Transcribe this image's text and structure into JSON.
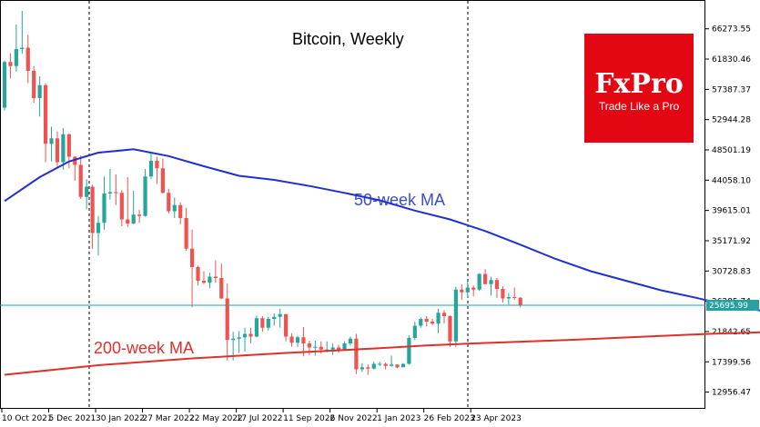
{
  "chart_data": {
    "type": "candlestick",
    "title": "Bitcoin, Weekly",
    "y_ticks": [
      "66273.55",
      "61830.46",
      "57387.37",
      "52944.28",
      "48501.19",
      "44058.10",
      "39615.01",
      "35171.92",
      "30728.83",
      "26285.74",
      "21842.65",
      "17399.56",
      "12956.47"
    ],
    "x_ticks": [
      "10 Oct 2021",
      "5 Dec 2021",
      "30 Jan 2022",
      "27 Mar 2022",
      "22 May 2022",
      "17 Jul 2022",
      "11 Sep 2022",
      "6 Nov 2022",
      "1 Jan 2023",
      "26 Feb 2023",
      "23 Apr 2023"
    ],
    "ylim": [
      10500,
      70500
    ],
    "current_price": "25695.99",
    "current_price_value": 25695.99,
    "annotations": {
      "ma50_label": "50-week MA",
      "ma200_label": "200-week MA"
    },
    "candles": [
      [
        54700,
        61600,
        54300,
        61400
      ],
      [
        61400,
        62700,
        59000,
        60800
      ],
      [
        60800,
        66900,
        60000,
        63300
      ],
      [
        63300,
        68900,
        62600,
        63500
      ],
      [
        63500,
        65400,
        58300,
        60100
      ],
      [
        60100,
        60800,
        55400,
        56100
      ],
      [
        56100,
        59300,
        53400,
        58000
      ],
      [
        58000,
        58300,
        46700,
        49400
      ],
      [
        49400,
        51900,
        46800,
        50200
      ],
      [
        50200,
        51200,
        45900,
        46700
      ],
      [
        46700,
        51700,
        45600,
        50800
      ],
      [
        50800,
        50900,
        45800,
        47500
      ],
      [
        47500,
        47600,
        44000,
        46300
      ],
      [
        46300,
        47700,
        41300,
        41600
      ],
      [
        41600,
        44200,
        39800,
        43100
      ],
      [
        43100,
        43400,
        34000,
        36300
      ],
      [
        36300,
        38800,
        33000,
        37800
      ],
      [
        37800,
        44600,
        36800,
        42100
      ],
      [
        42100,
        45700,
        41200,
        42300
      ],
      [
        42300,
        44900,
        40400,
        42200
      ],
      [
        42200,
        42600,
        37300,
        38300
      ],
      [
        38300,
        44500,
        37200,
        37700
      ],
      [
        37700,
        42500,
        37600,
        39000
      ],
      [
        39000,
        39700,
        37800,
        38800
      ],
      [
        38800,
        45700,
        38700,
        44600
      ],
      [
        44600,
        48200,
        44200,
        46900
      ],
      [
        46900,
        47500,
        43500,
        45800
      ],
      [
        45800,
        47200,
        42100,
        42200
      ],
      [
        42200,
        42800,
        39200,
        39500
      ],
      [
        39500,
        41500,
        38500,
        40400
      ],
      [
        40400,
        40800,
        37600,
        38500
      ],
      [
        38500,
        40000,
        33700,
        34000
      ],
      [
        34000,
        36800,
        25400,
        31300
      ],
      [
        31300,
        31500,
        28600,
        29300
      ],
      [
        29300,
        30700,
        28800,
        29000
      ],
      [
        29000,
        30500,
        28200,
        29900
      ],
      [
        29900,
        32300,
        29000,
        29700
      ],
      [
        29700,
        31800,
        26600,
        26700
      ],
      [
        26700,
        28900,
        17600,
        20600
      ],
      [
        20600,
        21800,
        17600,
        20800
      ],
      [
        20800,
        21900,
        18700,
        21000
      ],
      [
        21000,
        22400,
        18900,
        21500
      ],
      [
        21500,
        22400,
        20100,
        21100
      ],
      [
        21100,
        24200,
        21000,
        23800
      ],
      [
        23800,
        24100,
        21800,
        22400
      ],
      [
        22400,
        24000,
        22000,
        23700
      ],
      [
        23700,
        24500,
        22700,
        24000
      ],
      [
        24000,
        25200,
        22400,
        24400
      ],
      [
        24400,
        24400,
        20400,
        21100
      ],
      [
        21100,
        21600,
        19600,
        20200
      ],
      [
        20200,
        21200,
        19600,
        21000
      ],
      [
        21000,
        22500,
        18200,
        20100
      ],
      [
        20100,
        20500,
        18400,
        19500
      ],
      [
        19500,
        20500,
        18300,
        19600
      ],
      [
        19600,
        20400,
        18600,
        19200
      ],
      [
        19200,
        20400,
        18800,
        19200
      ],
      [
        19200,
        20100,
        18400,
        19500
      ],
      [
        19500,
        19900,
        18700,
        19200
      ],
      [
        19200,
        20400,
        19200,
        20100
      ],
      [
        20100,
        21100,
        19800,
        20800
      ],
      [
        20800,
        21500,
        15600,
        16300
      ],
      [
        16300,
        17200,
        15900,
        16600
      ],
      [
        16600,
        17000,
        15500,
        16400
      ],
      [
        16400,
        17400,
        16300,
        17100
      ],
      [
        17100,
        17400,
        16800,
        17100
      ],
      [
        17100,
        17300,
        16300,
        16800
      ],
      [
        16800,
        18300,
        16700,
        17000
      ],
      [
        17000,
        17000,
        16500,
        16600
      ],
      [
        16600,
        17200,
        16600,
        17100
      ],
      [
        17100,
        21300,
        17000,
        20900
      ],
      [
        20900,
        23300,
        20600,
        22700
      ],
      [
        22700,
        23900,
        22400,
        23700
      ],
      [
        23700,
        24100,
        22600,
        23300
      ],
      [
        23300,
        23700,
        22800,
        23000
      ],
      [
        23000,
        25200,
        21600,
        24600
      ],
      [
        24600,
        25000,
        23000,
        24100
      ],
      [
        24100,
        24200,
        19600,
        20400
      ],
      [
        20400,
        28400,
        19600,
        28000
      ],
      [
        28000,
        28800,
        26500,
        27600
      ],
      [
        27600,
        29200,
        26800,
        28300
      ],
      [
        28300,
        28600,
        27000,
        28000
      ],
      [
        28000,
        30400,
        27800,
        30300
      ],
      [
        30300,
        31000,
        28800,
        28800
      ],
      [
        28800,
        29900,
        27100,
        29400
      ],
      [
        29400,
        29700,
        26800,
        28100
      ],
      [
        28100,
        28500,
        26100,
        26700
      ],
      [
        26700,
        27500,
        25800,
        26900
      ],
      [
        26900,
        28300,
        26500,
        26800
      ],
      [
        26800,
        26900,
        25400,
        25700
      ]
    ],
    "ma50": [
      [
        0,
        41000
      ],
      [
        6,
        44500
      ],
      [
        11,
        46800
      ],
      [
        16,
        48100
      ],
      [
        22,
        48600
      ],
      [
        28,
        47600
      ],
      [
        34,
        46100
      ],
      [
        40,
        44700
      ],
      [
        46,
        44100
      ],
      [
        52,
        43200
      ],
      [
        58,
        42200
      ],
      [
        64,
        41100
      ],
      [
        70,
        39600
      ],
      [
        76,
        38300
      ],
      [
        82,
        36600
      ],
      [
        88,
        34600
      ],
      [
        94,
        32500
      ],
      [
        100,
        30700
      ],
      [
        106,
        29300
      ],
      [
        112,
        27900
      ],
      [
        118,
        26800
      ],
      [
        124,
        25600
      ],
      [
        130,
        24800
      ],
      [
        136,
        24000
      ],
      [
        142,
        23400
      ],
      [
        148,
        22500
      ],
      [
        154,
        21200
      ],
      [
        160,
        20300
      ],
      [
        166,
        20100
      ],
      [
        172,
        20100
      ],
      [
        178,
        20200
      ]
    ],
    "ma200": [
      [
        0,
        15500
      ],
      [
        16,
        16900
      ],
      [
        32,
        17900
      ],
      [
        48,
        18700
      ],
      [
        64,
        19400
      ],
      [
        72,
        19800
      ],
      [
        80,
        20100
      ],
      [
        96,
        20600
      ],
      [
        112,
        21200
      ],
      [
        120,
        21500
      ],
      [
        128,
        21700
      ],
      [
        136,
        22000
      ],
      [
        144,
        22300
      ],
      [
        152,
        22900
      ],
      [
        160,
        23600
      ],
      [
        170,
        24700
      ],
      [
        178,
        25900
      ]
    ]
  },
  "logo": {
    "brand": "FxPro",
    "tagline": "Trade Like a Pro",
    "bg_color": "#e30613"
  },
  "colors": {
    "up": "#26a69a",
    "down": "#ef5350",
    "ma50": "#2030d0",
    "ma200": "#e0302a",
    "price_line": "#26a0a0"
  }
}
